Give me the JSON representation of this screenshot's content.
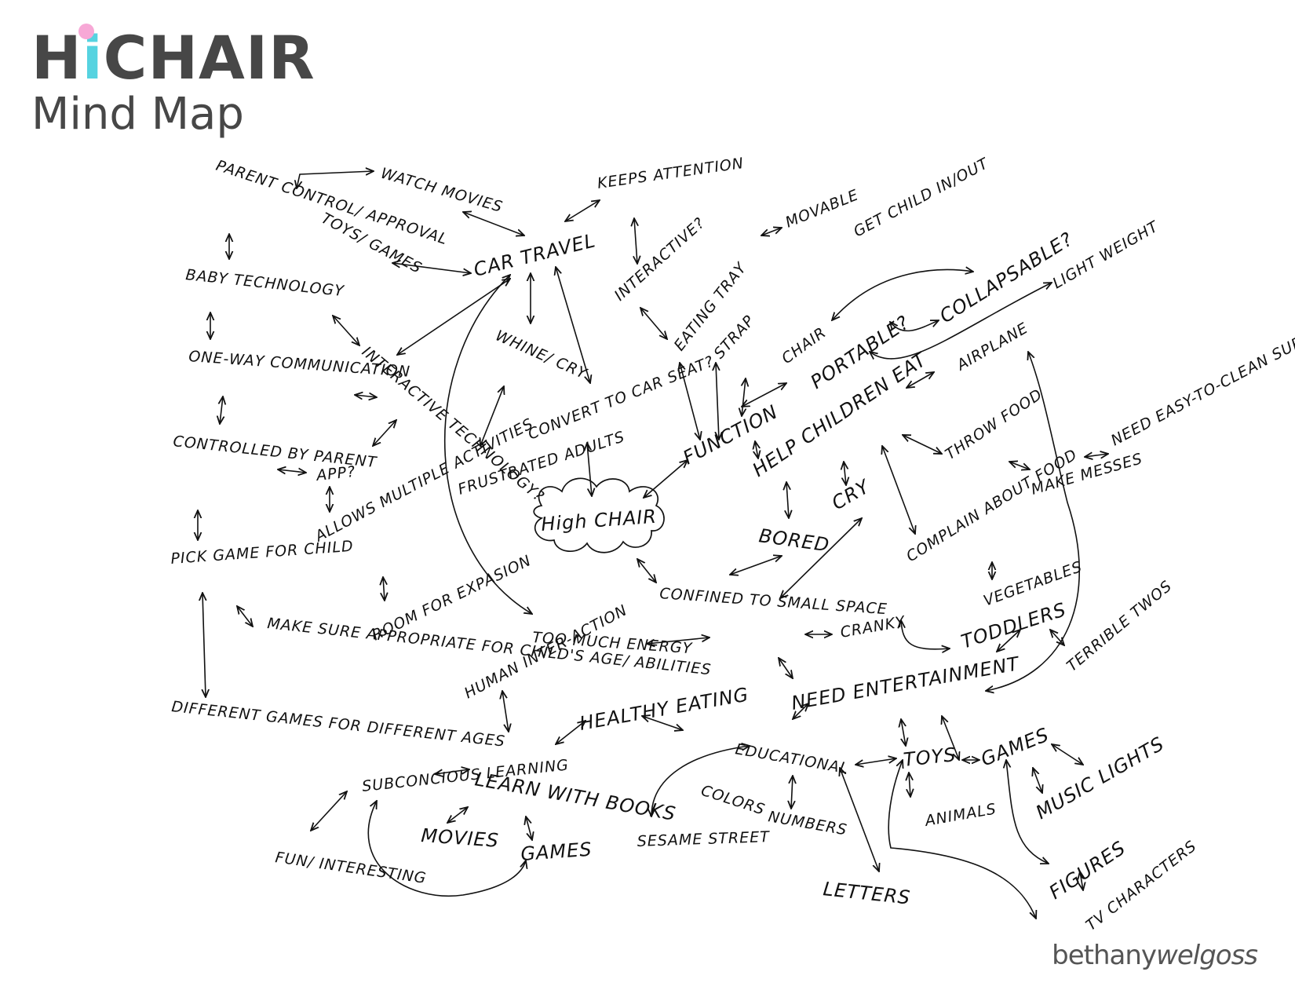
{
  "header": {
    "brand_pre": "H",
    "brand_i": "i",
    "brand_post": "CHAIR",
    "subtitle": "Mind Map"
  },
  "colors": {
    "brand_gray": "#474747",
    "brand_cyan": "#56d3e0",
    "brand_pink": "#f7a8d6"
  },
  "nodes": {
    "parent_control": "PARENT CONTROL/ APPROVAL",
    "watch_movies": "WATCH MOVIES",
    "toys_games_top": "TOYS/ GAMES",
    "keeps_attention": "KEEPS ATTENTION",
    "car_travel": "CAR TRAVEL",
    "interactive_q": "INTERACTIVE?",
    "movable": "MOVABLE",
    "get_child_in_out": "GET CHILD IN/OUT",
    "eating_tray": "EATING TRAY",
    "collapsable": "COLLAPSABLE?",
    "light_weight": "LIGHT WEIGHT",
    "baby_technology": "BABY TECHNOLOGY",
    "strap": "STRAP",
    "chair": "CHAIR",
    "portable": "PORTABLE?",
    "airplane": "AIRPLANE",
    "whine_cry": "WHINE/ CRY",
    "one_way": "ONE-WAY COMMUNICATION",
    "interactive_tech": "INTERACTIVE TECHNOLOGY?",
    "convert_car_seat": "CONVERT TO CAR SEAT?",
    "function": "FUNCTION",
    "help_children_eat": "HELP CHILDREN EAT",
    "throw_food": "THROW FOOD",
    "controlled_by_parent": "CONTROLLED BY PARENT",
    "app": "APP?",
    "frustrated_adults": "FRUSTRATED ADULTS",
    "make_messes": "MAKE MESSES",
    "need_easy_clean": "NEED EASY-TO-CLEAN SURFACES",
    "allows_multiple": "ALLOWS MULTIPLE ACTIVITIES",
    "high_chair": "High CHAIR",
    "bored": "BORED",
    "cry": "CRY",
    "complain_food": "COMPLAIN ABOUT FOOD",
    "pick_game": "PICK GAME FOR CHILD",
    "vegetables": "VEGETABLES",
    "confined": "CONFINED TO SMALL SPACE",
    "room_expansion": "ROOM FOR EXPASION",
    "make_sure": "MAKE SURE APPROPRIATE FOR CHILD'S AGE/ ABILITIES",
    "too_much_energy": "TOO MUCH ENERGY",
    "cranky": "CRANKY",
    "toddlers": "TODDLERS",
    "terrible_twos": "TERRIBLE TWOS",
    "human_interaction": "HUMAN INTER-ACTION",
    "need_entertainment": "NEED ENTERTAINMENT",
    "different_games": "DIFFERENT GAMES FOR DIFFERENT AGES",
    "healthy_eating": "HEALTHY EATING",
    "educational": "EDUCATIONAL",
    "toys": "TOYS",
    "games_right": "GAMES",
    "music_lights": "MUSIC LIGHTS",
    "subconcious": "SUBCONCIOUS LEARNING",
    "learn_books": "LEARN WITH BOOKS",
    "colors": "COLORS",
    "numbers": "NUMBERS",
    "animals": "ANIMALS",
    "movies": "MOVIES",
    "sesame_street": "SESAME STREET",
    "fun_interesting": "FUN/ INTERESTING",
    "games_bottom": "GAMES",
    "letters": "LETTERS",
    "figures": "FIGURES",
    "tv_characters": "TV CHARACTERS"
  },
  "footer": {
    "name_regular": "bethany",
    "name_italic": "welgoss"
  }
}
